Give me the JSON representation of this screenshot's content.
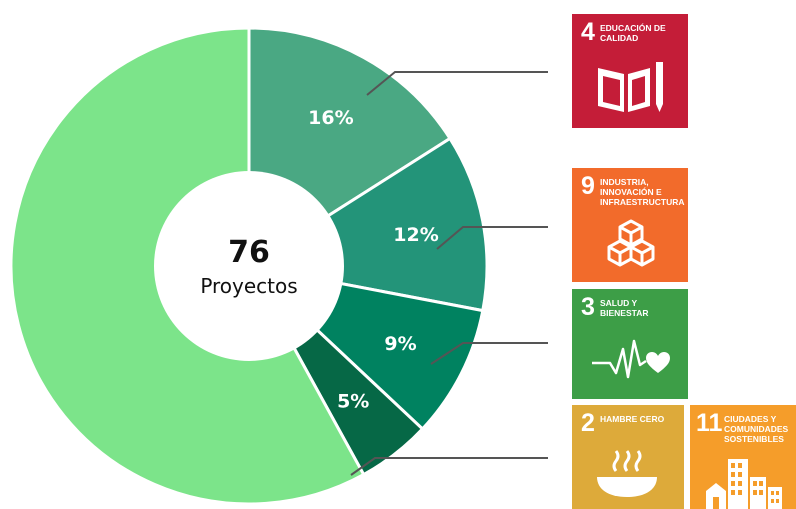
{
  "chart_data": {
    "type": "pie",
    "donut": true,
    "center": {
      "value": "76",
      "label": "Proyectos"
    },
    "slices": [
      {
        "value": 16,
        "label": "16%",
        "color": "#4aa883"
      },
      {
        "value": 12,
        "label": "12%",
        "color": "#239479"
      },
      {
        "value": 9,
        "label": "9%",
        "color": "#008260"
      },
      {
        "value": 5,
        "label": "5%",
        "color": "#066846"
      },
      {
        "value": 58,
        "label": "",
        "color": "#7ce48a"
      }
    ]
  },
  "sdg_badges": [
    {
      "number": "4",
      "title": "EDUCACIÓN DE CALIDAD",
      "color": "#c41d38",
      "icon": "book-pencil-icon"
    },
    {
      "number": "9",
      "title": "INDUSTRIA, INNOVACIÓN E INFRAESTRUCTURA",
      "color": "#f26b2b",
      "icon": "cubes-icon"
    },
    {
      "number": "3",
      "title": "SALUD Y BIENESTAR",
      "color": "#3d9e47",
      "icon": "heartbeat-icon"
    },
    {
      "number": "2",
      "title": "HAMBRE CERO",
      "color": "#ddaa3a",
      "icon": "bowl-icon"
    },
    {
      "number": "11",
      "title": "CIUDADES Y COMUNIDADES SOSTENIBLES",
      "color": "#f59d2a",
      "icon": "city-icon"
    }
  ]
}
